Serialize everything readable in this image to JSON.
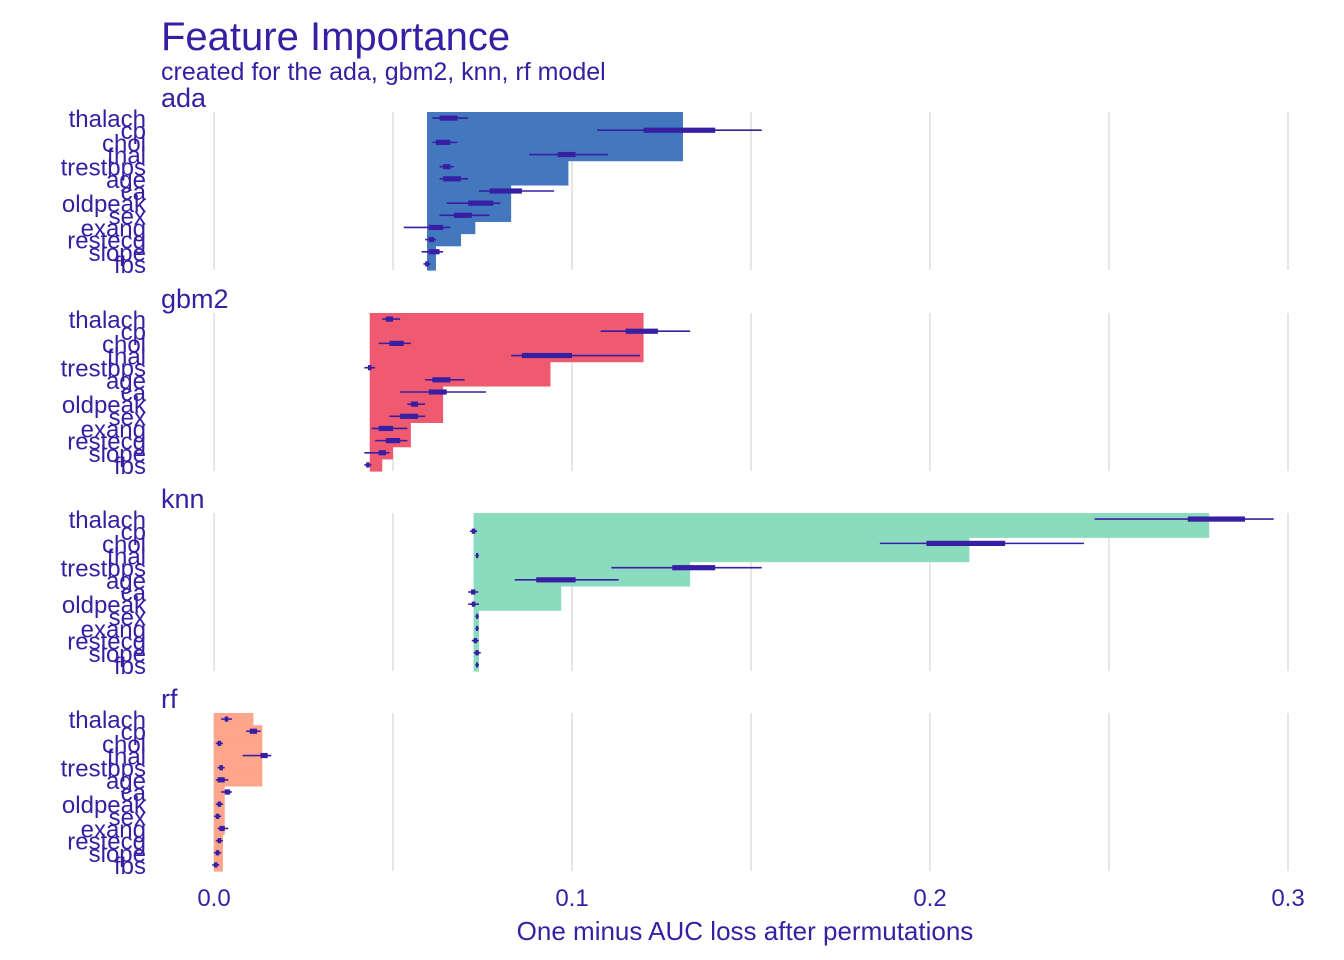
{
  "title": "Feature Importance",
  "subtitle": "created for the ada, gbm2, knn, rf model",
  "chart_data": {
    "type": "bar",
    "orientation": "horizontal",
    "title": "Feature Importance",
    "subtitle": "created for the ada, gbm2, knn, rf model",
    "xlabel": "One minus AUC loss after permutations",
    "ylabel": "",
    "xlim": [
      -0.015,
      0.3
    ],
    "xticks": [
      0.0,
      0.1,
      0.2,
      0.3
    ],
    "xtick_labels": [
      "0.0",
      "0.1",
      "0.2",
      "0.3"
    ],
    "grid": "vertical",
    "legend": "none",
    "categories": [
      "thalach",
      "cp",
      "chol",
      "thal",
      "trestbps",
      "age",
      "ca",
      "oldpeak",
      "sex",
      "exang",
      "restecg",
      "slope",
      "fbs"
    ],
    "panels": [
      {
        "name": "ada",
        "color": "#4378bf",
        "baseline": 0.0595,
        "values": [
          0.131,
          0.131,
          0.131,
          0.131,
          0.099,
          0.099,
          0.083,
          0.083,
          0.083,
          0.073,
          0.069,
          0.062,
          0.062
        ],
        "boxplots": [
          {
            "min": 0.061,
            "q1": 0.063,
            "median": 0.065,
            "q3": 0.068,
            "max": 0.071
          },
          {
            "min": 0.107,
            "q1": 0.12,
            "median": 0.128,
            "q3": 0.14,
            "max": 0.153
          },
          {
            "min": 0.061,
            "q1": 0.062,
            "median": 0.064,
            "q3": 0.066,
            "max": 0.068
          },
          {
            "min": 0.088,
            "q1": 0.096,
            "median": 0.099,
            "q3": 0.101,
            "max": 0.11
          },
          {
            "min": 0.063,
            "q1": 0.064,
            "median": 0.065,
            "q3": 0.066,
            "max": 0.067
          },
          {
            "min": 0.063,
            "q1": 0.064,
            "median": 0.066,
            "q3": 0.069,
            "max": 0.071
          },
          {
            "min": 0.074,
            "q1": 0.077,
            "median": 0.081,
            "q3": 0.086,
            "max": 0.095
          },
          {
            "min": 0.065,
            "q1": 0.071,
            "median": 0.074,
            "q3": 0.078,
            "max": 0.08
          },
          {
            "min": 0.063,
            "q1": 0.067,
            "median": 0.069,
            "q3": 0.072,
            "max": 0.077
          },
          {
            "min": 0.053,
            "q1": 0.06,
            "median": 0.062,
            "q3": 0.064,
            "max": 0.066
          },
          {
            "min": 0.059,
            "q1": 0.06,
            "median": 0.0605,
            "q3": 0.0615,
            "max": 0.062
          },
          {
            "min": 0.058,
            "q1": 0.06,
            "median": 0.0615,
            "q3": 0.063,
            "max": 0.064
          },
          {
            "min": 0.0585,
            "q1": 0.059,
            "median": 0.0595,
            "q3": 0.06,
            "max": 0.0605
          }
        ]
      },
      {
        "name": "gbm2",
        "color": "#f05a71",
        "baseline": 0.0435,
        "values": [
          0.12,
          0.12,
          0.12,
          0.12,
          0.094,
          0.094,
          0.064,
          0.064,
          0.064,
          0.055,
          0.055,
          0.05,
          0.047
        ],
        "boxplots": [
          {
            "min": 0.047,
            "q1": 0.048,
            "median": 0.049,
            "q3": 0.05,
            "max": 0.052
          },
          {
            "min": 0.108,
            "q1": 0.115,
            "median": 0.119,
            "q3": 0.124,
            "max": 0.133
          },
          {
            "min": 0.046,
            "q1": 0.049,
            "median": 0.051,
            "q3": 0.053,
            "max": 0.055
          },
          {
            "min": 0.083,
            "q1": 0.086,
            "median": 0.093,
            "q3": 0.1,
            "max": 0.119
          },
          {
            "min": 0.042,
            "q1": 0.043,
            "median": 0.0435,
            "q3": 0.044,
            "max": 0.045
          },
          {
            "min": 0.059,
            "q1": 0.061,
            "median": 0.063,
            "q3": 0.066,
            "max": 0.07
          },
          {
            "min": 0.052,
            "q1": 0.06,
            "median": 0.063,
            "q3": 0.065,
            "max": 0.076
          },
          {
            "min": 0.054,
            "q1": 0.055,
            "median": 0.056,
            "q3": 0.057,
            "max": 0.059
          },
          {
            "min": 0.049,
            "q1": 0.052,
            "median": 0.054,
            "q3": 0.057,
            "max": 0.059
          },
          {
            "min": 0.044,
            "q1": 0.046,
            "median": 0.048,
            "q3": 0.05,
            "max": 0.054
          },
          {
            "min": 0.045,
            "q1": 0.048,
            "median": 0.05,
            "q3": 0.052,
            "max": 0.054
          },
          {
            "min": 0.042,
            "q1": 0.046,
            "median": 0.047,
            "q3": 0.048,
            "max": 0.049
          },
          {
            "min": 0.042,
            "q1": 0.0425,
            "median": 0.043,
            "q3": 0.0435,
            "max": 0.044
          }
        ]
      },
      {
        "name": "knn",
        "color": "#8bdcbe",
        "baseline": 0.0725,
        "values": [
          0.278,
          0.278,
          0.211,
          0.211,
          0.133,
          0.133,
          0.097,
          0.097,
          0.074,
          0.074,
          0.074,
          0.074,
          0.074
        ],
        "boxplots": [
          {
            "min": 0.246,
            "q1": 0.272,
            "median": 0.28,
            "q3": 0.288,
            "max": 0.296
          },
          {
            "min": 0.0715,
            "q1": 0.072,
            "median": 0.0725,
            "q3": 0.073,
            "max": 0.0735
          },
          {
            "min": 0.186,
            "q1": 0.199,
            "median": 0.21,
            "q3": 0.221,
            "max": 0.243
          },
          {
            "min": 0.073,
            "q1": 0.0732,
            "median": 0.0735,
            "q3": 0.0738,
            "max": 0.074
          },
          {
            "min": 0.111,
            "q1": 0.128,
            "median": 0.133,
            "q3": 0.14,
            "max": 0.153
          },
          {
            "min": 0.084,
            "q1": 0.09,
            "median": 0.094,
            "q3": 0.101,
            "max": 0.113
          },
          {
            "min": 0.071,
            "q1": 0.0718,
            "median": 0.0725,
            "q3": 0.073,
            "max": 0.0738
          },
          {
            "min": 0.071,
            "q1": 0.072,
            "median": 0.0725,
            "q3": 0.073,
            "max": 0.074
          },
          {
            "min": 0.073,
            "q1": 0.0732,
            "median": 0.0735,
            "q3": 0.0738,
            "max": 0.074
          },
          {
            "min": 0.073,
            "q1": 0.0732,
            "median": 0.0735,
            "q3": 0.0738,
            "max": 0.074
          },
          {
            "min": 0.072,
            "q1": 0.0725,
            "median": 0.073,
            "q3": 0.0735,
            "max": 0.074
          },
          {
            "min": 0.0725,
            "q1": 0.073,
            "median": 0.0735,
            "q3": 0.074,
            "max": 0.0745
          },
          {
            "min": 0.073,
            "q1": 0.0732,
            "median": 0.0735,
            "q3": 0.0738,
            "max": 0.074
          }
        ]
      },
      {
        "name": "rf",
        "color": "#ffa58c",
        "baseline": 0.0,
        "values": [
          0.011,
          0.0135,
          0.0135,
          0.0135,
          0.0135,
          0.0135,
          0.003,
          0.003,
          0.003,
          0.003,
          0.0025,
          0.0025,
          0.0025
        ],
        "boxplots": [
          {
            "min": 0.002,
            "q1": 0.003,
            "median": 0.0035,
            "q3": 0.004,
            "max": 0.005
          },
          {
            "min": 0.009,
            "q1": 0.01,
            "median": 0.0115,
            "q3": 0.012,
            "max": 0.013
          },
          {
            "min": 0.0005,
            "q1": 0.001,
            "median": 0.0015,
            "q3": 0.002,
            "max": 0.0025
          },
          {
            "min": 0.008,
            "q1": 0.013,
            "median": 0.014,
            "q3": 0.015,
            "max": 0.016
          },
          {
            "min": 0.001,
            "q1": 0.0015,
            "median": 0.002,
            "q3": 0.0025,
            "max": 0.003
          },
          {
            "min": 0.0005,
            "q1": 0.001,
            "median": 0.002,
            "q3": 0.003,
            "max": 0.004
          },
          {
            "min": 0.002,
            "q1": 0.003,
            "median": 0.004,
            "q3": 0.0045,
            "max": 0.005
          },
          {
            "min": 0.0005,
            "q1": 0.001,
            "median": 0.0015,
            "q3": 0.002,
            "max": 0.0025
          },
          {
            "min": 0.0,
            "q1": 0.0005,
            "median": 0.001,
            "q3": 0.0015,
            "max": 0.002
          },
          {
            "min": 0.001,
            "q1": 0.0015,
            "median": 0.002,
            "q3": 0.003,
            "max": 0.004
          },
          {
            "min": 0.0005,
            "q1": 0.001,
            "median": 0.0015,
            "q3": 0.002,
            "max": 0.0025
          },
          {
            "min": 0.0,
            "q1": 0.0005,
            "median": 0.001,
            "q3": 0.0015,
            "max": 0.002
          },
          {
            "min": -0.0005,
            "q1": 0.0,
            "median": 0.0005,
            "q3": 0.001,
            "max": 0.0015
          }
        ]
      }
    ],
    "whisker_color": "#371ea3"
  }
}
